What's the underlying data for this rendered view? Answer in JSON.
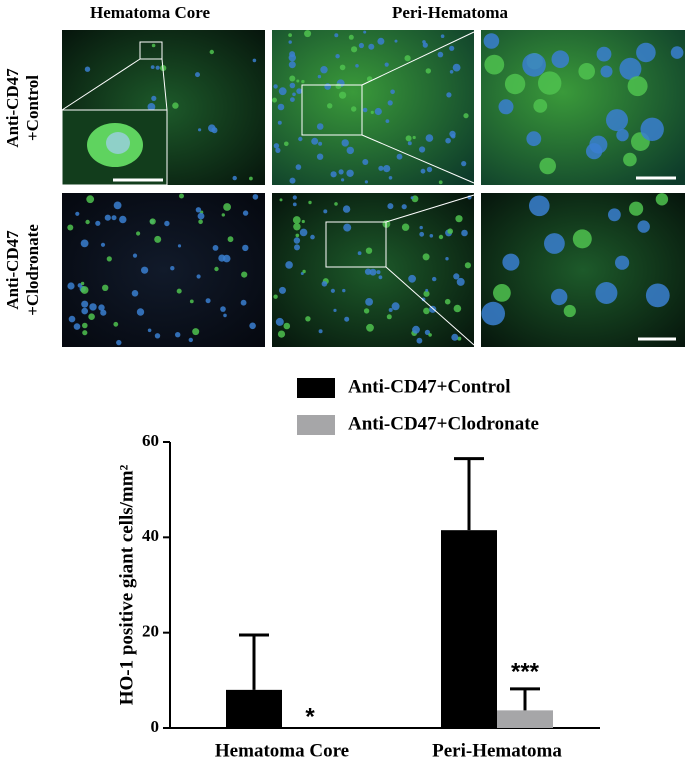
{
  "panels": {
    "columns": [
      "Hematoma Core",
      "Peri-Hematoma"
    ],
    "rows": [
      [
        "Anti-CD47",
        "+Control"
      ],
      [
        "Anti-CD47",
        "+Clodronate"
      ]
    ]
  },
  "chart_data": {
    "type": "bar",
    "ylabel": "HO-1 positive giant cells/mm²",
    "categories": [
      "Hematoma Core",
      "Peri-Hematoma"
    ],
    "series": [
      {
        "name": "Anti-CD47+Control",
        "color": "#000000",
        "values": [
          8,
          41.5
        ],
        "errors": [
          11.5,
          15
        ]
      },
      {
        "name": "Anti-CD47+Clodronate",
        "color": "#a6a6a8",
        "values": [
          0,
          3.7
        ],
        "errors": [
          0,
          4.5
        ],
        "labels": [
          "*",
          "***"
        ]
      }
    ],
    "ylim": [
      0,
      60
    ],
    "yticks": [
      0,
      20,
      40,
      60
    ],
    "grid": false
  }
}
